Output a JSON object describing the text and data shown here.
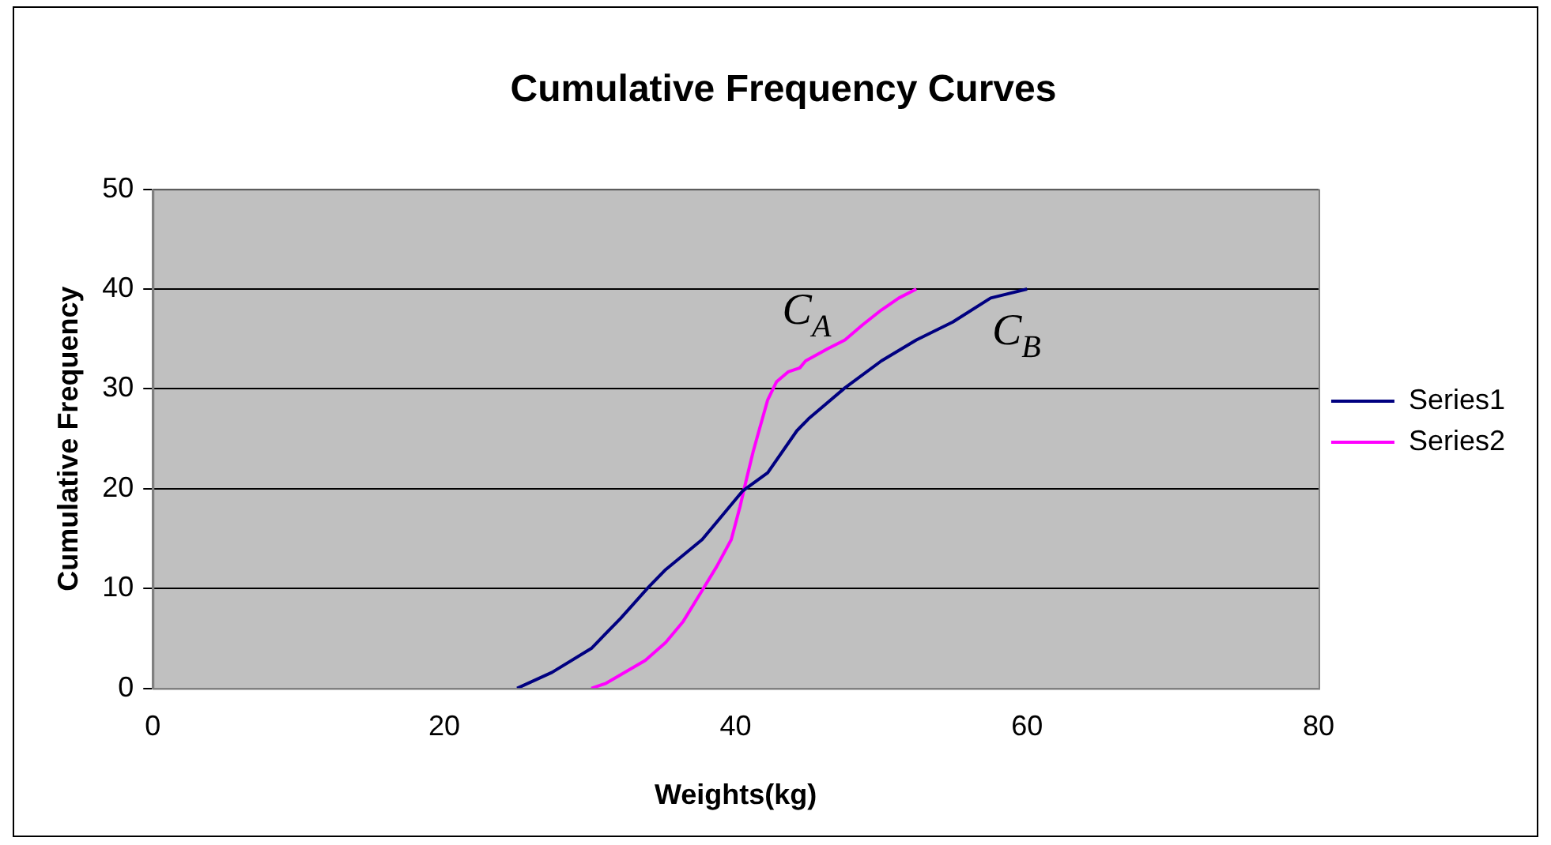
{
  "chart_data": {
    "type": "line",
    "title": "Cumulative Frequency Curves",
    "xlabel": "Weights(kg)",
    "ylabel": "Cumulative Frequency",
    "xlim": [
      0,
      80
    ],
    "xticks": [
      0,
      20,
      40,
      60,
      80
    ],
    "ylim": [
      0,
      50
    ],
    "yticks": [
      0,
      10,
      20,
      30,
      40,
      50
    ],
    "grid": "y",
    "legend": "right",
    "marker": "none",
    "line_style": "solid",
    "series": [
      {
        "name": "Series1",
        "color": "#000080",
        "x": [
          25.0,
          27.4,
          30.1,
          32.1,
          34.0,
          35.2,
          37.7,
          38.9,
          40.5,
          42.2,
          44.2,
          45.0,
          47.5,
          50.0,
          52.4,
          54.9,
          57.5,
          60.0
        ],
        "values": [
          0,
          1.6,
          4.0,
          7.0,
          10.1,
          11.9,
          14.9,
          17.0,
          19.8,
          21.6,
          25.8,
          27.0,
          30.1,
          32.8,
          34.9,
          36.7,
          39.1,
          40
        ]
      },
      {
        "name": "Series2",
        "color": "#ff00ff",
        "x": [
          30.1,
          31.1,
          33.8,
          35.2,
          36.4,
          37.7,
          38.7,
          39.7,
          40.3,
          40.7,
          41.2,
          41.6,
          42.2,
          42.8,
          43.6,
          44.4,
          44.8,
          46.3,
          47.5,
          48.7,
          50.0,
          51.2,
          52.4
        ],
        "values": [
          0,
          0.5,
          2.8,
          4.6,
          6.7,
          9.8,
          12.2,
          14.9,
          18.2,
          20.7,
          23.7,
          25.8,
          28.9,
          30.7,
          31.7,
          32.1,
          32.8,
          34.0,
          34.9,
          36.4,
          37.9,
          39.1,
          40
        ]
      }
    ],
    "annotations": [
      "C$_{A}$",
      "C$_{B}$"
    ]
  }
}
